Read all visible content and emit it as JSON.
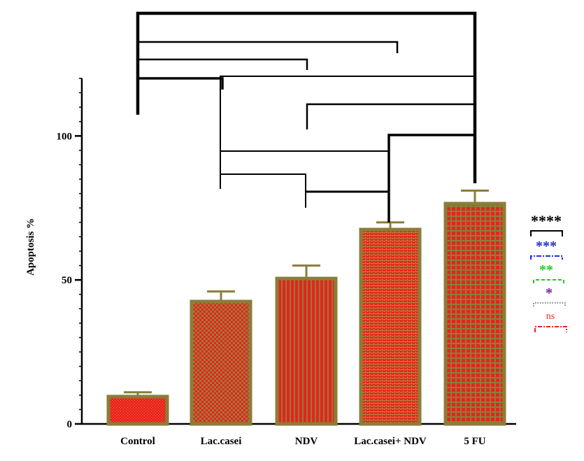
{
  "chart_data": {
    "type": "bar",
    "categories": [
      "Control",
      "Lac.casei",
      "NDV",
      "Lac.casei+ NDV",
      "5 FU"
    ],
    "values": [
      9.5,
      42.5,
      50.5,
      67.5,
      76.5
    ],
    "errors": [
      1.5,
      3.5,
      4.5,
      2.5,
      4.5
    ],
    "ylabel": "Apoptosis %",
    "xlabel": "",
    "title": "",
    "ylim": [
      0,
      120
    ],
    "yticks": [
      {
        "value": 0,
        "label": "0"
      },
      {
        "value": 50,
        "label": "50"
      },
      {
        "value": 100,
        "label": "100"
      }
    ],
    "bar_fill": "#e8231d",
    "bar_border": "#8b7d3a",
    "error_color": "#8b7d3a",
    "significance_legend": [
      {
        "label": "****",
        "color": "#000000",
        "line": "solid"
      },
      {
        "label": "***",
        "color": "#1f2fd6",
        "line": "dash-dot"
      },
      {
        "label": "**",
        "color": "#22cc22",
        "line": "dashed"
      },
      {
        "label": "*",
        "color": "#7a1f9a",
        "line": "dotted"
      },
      {
        "label": "ns",
        "color": "#e8231d",
        "line": "dash-dot"
      }
    ]
  }
}
